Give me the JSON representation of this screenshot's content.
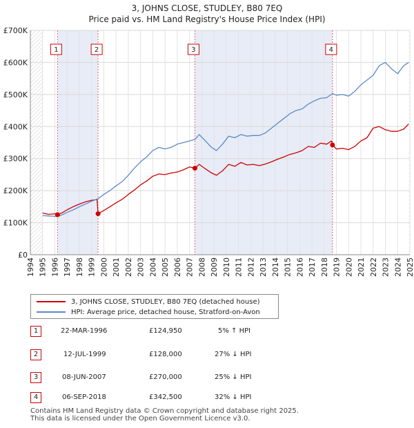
{
  "title_line1": "3, JOHNS CLOSE, STUDLEY, B80 7EQ",
  "title_line2": "Price paid vs. HM Land Registry's House Price Index (HPI)",
  "legend": {
    "property_label": "3, JOHNS CLOSE, STUDLEY, B80 7EQ (detached house)",
    "hpi_label": "HPI: Average price, detached house, Stratford-on-Avon",
    "property_color": "#cc0000",
    "hpi_color": "#5b8ac6"
  },
  "sales": [
    {
      "num": "1",
      "date": "22-MAR-1996",
      "price": "£124,950",
      "hpi": "5% ↑ HPI"
    },
    {
      "num": "2",
      "date": "12-JUL-1999",
      "price": "£128,000",
      "hpi": "27% ↓ HPI"
    },
    {
      "num": "3",
      "date": "08-JUN-2007",
      "price": "£270,000",
      "hpi": "25% ↓ HPI"
    },
    {
      "num": "4",
      "date": "06-SEP-2018",
      "price": "£342,500",
      "hpi": "32% ↓ HPI"
    }
  ],
  "footer_line1": "Contains HM Land Registry data © Crown copyright and database right 2025.",
  "footer_line2": "This data is licensed under the Open Government Licence v3.0.",
  "chart_data": {
    "type": "line",
    "title": "Price paid vs. HM Land Registry's House Price Index (HPI)",
    "xlim": [
      1994,
      2025
    ],
    "ylim": [
      0,
      700000
    ],
    "y_ticks": [
      0,
      100000,
      200000,
      300000,
      400000,
      500000,
      600000,
      700000
    ],
    "y_tick_labels": [
      "£0",
      "£100K",
      "£200K",
      "£300K",
      "£400K",
      "£500K",
      "£600K",
      "£700K"
    ],
    "x_ticks": [
      1994,
      1995,
      1996,
      1997,
      1998,
      1999,
      2000,
      2001,
      2002,
      2003,
      2004,
      2005,
      2006,
      2007,
      2008,
      2009,
      2010,
      2011,
      2012,
      2013,
      2014,
      2015,
      2016,
      2017,
      2018,
      2019,
      2020,
      2021,
      2022,
      2023,
      2024,
      2025
    ],
    "x_tick_labels": [
      "1994",
      "1995",
      "1996",
      "1997",
      "1998",
      "1999",
      "2000",
      "2001",
      "2002",
      "2003",
      "2004",
      "2005",
      "2006",
      "2007",
      "2008",
      "2009",
      "2010",
      "2011",
      "2012",
      "2013",
      "2014",
      "2015",
      "2016",
      "2017",
      "2018",
      "2019",
      "2020",
      "2021",
      "2022",
      "2023",
      "2024",
      "2025"
    ],
    "grid": true,
    "sale_markers": [
      {
        "label": "1",
        "x": 1996.22,
        "y": 124950
      },
      {
        "label": "2",
        "x": 1999.53,
        "y": 128000
      },
      {
        "label": "3",
        "x": 2007.44,
        "y": 270000
      },
      {
        "label": "4",
        "x": 2018.68,
        "y": 342500
      }
    ],
    "series": [
      {
        "name": "3, JOHNS CLOSE, STUDLEY, B80 7EQ (detached house)",
        "color": "#cc0000",
        "x": [
          1995.0,
          1995.5,
          1996.0,
          1996.22,
          1996.6,
          1997.0,
          1997.5,
          1998.0,
          1998.5,
          1999.0,
          1999.45,
          1999.53,
          2000.0,
          2000.5,
          2001.0,
          2001.5,
          2002.0,
          2002.5,
          2003.0,
          2003.5,
          2004.0,
          2004.5,
          2005.0,
          2005.5,
          2006.0,
          2006.5,
          2007.0,
          2007.44,
          2007.8,
          2008.3,
          2008.8,
          2009.2,
          2009.7,
          2010.2,
          2010.7,
          2011.2,
          2011.7,
          2012.2,
          2012.7,
          2013.2,
          2013.7,
          2014.2,
          2014.7,
          2015.2,
          2015.7,
          2016.2,
          2016.7,
          2017.2,
          2017.7,
          2018.2,
          2018.6,
          2018.68,
          2019.0,
          2019.5,
          2020.0,
          2020.5,
          2021.0,
          2021.5,
          2022.0,
          2022.5,
          2023.0,
          2023.5,
          2024.0,
          2024.5,
          2024.9
        ],
        "y": [
          130000,
          126000,
          128000,
          124950,
          131000,
          140000,
          150000,
          158000,
          165000,
          170000,
          172000,
          128000,
          138000,
          150000,
          162000,
          173000,
          188000,
          202000,
          218000,
          230000,
          245000,
          252000,
          250000,
          255000,
          258000,
          265000,
          274000,
          270000,
          282000,
          268000,
          255000,
          248000,
          262000,
          282000,
          276000,
          288000,
          280000,
          282000,
          278000,
          283000,
          290000,
          298000,
          305000,
          313000,
          318000,
          325000,
          338000,
          335000,
          348000,
          345000,
          355000,
          342500,
          330000,
          332000,
          328000,
          338000,
          355000,
          365000,
          395000,
          400000,
          390000,
          385000,
          385000,
          392000,
          408000
        ]
      },
      {
        "name": "HPI: Average price, detached house, Stratford-on-Avon",
        "color": "#5b8ac6",
        "x": [
          1995.0,
          1995.5,
          1996.0,
          1996.22,
          1996.6,
          1997.0,
          1997.5,
          1998.0,
          1998.5,
          1999.0,
          1999.53,
          2000.0,
          2000.5,
          2001.0,
          2001.5,
          2002.0,
          2002.5,
          2003.0,
          2003.5,
          2004.0,
          2004.5,
          2005.0,
          2005.5,
          2006.0,
          2006.5,
          2007.0,
          2007.44,
          2007.8,
          2008.3,
          2008.8,
          2009.2,
          2009.7,
          2010.2,
          2010.7,
          2011.2,
          2011.7,
          2012.2,
          2012.7,
          2013.2,
          2013.7,
          2014.2,
          2014.7,
          2015.2,
          2015.7,
          2016.2,
          2016.7,
          2017.2,
          2017.7,
          2018.2,
          2018.68,
          2019.0,
          2019.5,
          2020.0,
          2020.5,
          2021.0,
          2021.5,
          2022.0,
          2022.5,
          2023.0,
          2023.5,
          2024.0,
          2024.5,
          2024.9
        ],
        "y": [
          122000,
          121000,
          120000,
          119000,
          125000,
          132000,
          140000,
          150000,
          158000,
          167000,
          175000,
          188000,
          200000,
          215000,
          228000,
          248000,
          270000,
          290000,
          305000,
          325000,
          335000,
          330000,
          335000,
          345000,
          350000,
          355000,
          360000,
          375000,
          355000,
          335000,
          325000,
          345000,
          370000,
          365000,
          375000,
          370000,
          372000,
          372000,
          380000,
          395000,
          410000,
          425000,
          440000,
          450000,
          455000,
          470000,
          480000,
          488000,
          490000,
          503000,
          498000,
          500000,
          495000,
          510000,
          530000,
          545000,
          560000,
          590000,
          600000,
          580000,
          565000,
          590000,
          600000
        ]
      }
    ]
  }
}
